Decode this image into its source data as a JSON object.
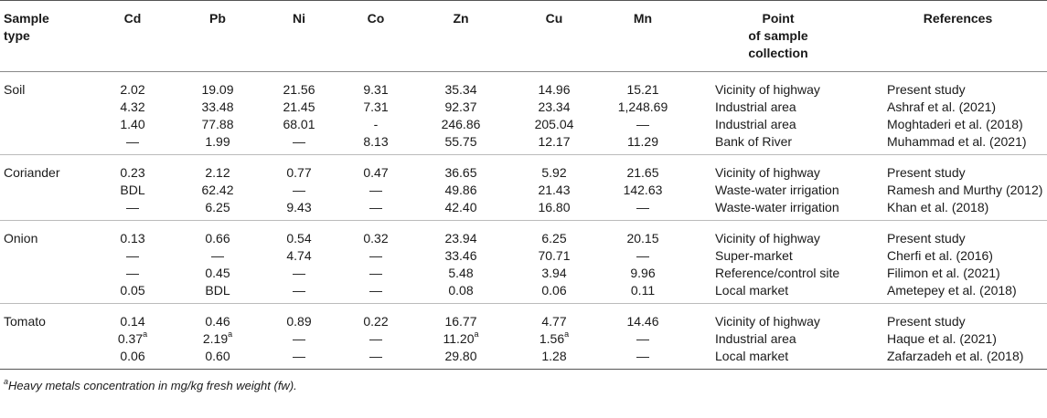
{
  "headers": {
    "sample_type": [
      "Sample",
      "type"
    ],
    "cd": "Cd",
    "pb": "Pb",
    "ni": "Ni",
    "co": "Co",
    "zn": "Zn",
    "cu": "Cu",
    "mn": "Mn",
    "point": [
      "Point",
      "of sample",
      "collection"
    ],
    "references": "References"
  },
  "groups": [
    {
      "sample": "Soil",
      "rows": [
        {
          "cd": "2.02",
          "pb": "19.09",
          "ni": "21.56",
          "co": "9.31",
          "zn": "35.34",
          "cu": "14.96",
          "mn": "15.21",
          "point": "Vicinity of highway",
          "ref": "Present study"
        },
        {
          "cd": "4.32",
          "pb": "33.48",
          "ni": "21.45",
          "co": "7.31",
          "zn": "92.37",
          "cu": "23.34",
          "mn": "1,248.69",
          "point": "Industrial area",
          "ref": "Ashraf et al. (2021)"
        },
        {
          "cd": "1.40",
          "pb": "77.88",
          "ni": "68.01",
          "co": "-",
          "zn": "246.86",
          "cu": "205.04",
          "mn": "—",
          "point": "Industrial area",
          "ref": "Moghtaderi et al. (2018)"
        },
        {
          "cd": "—",
          "pb": "1.99",
          "ni": "—",
          "co": "8.13",
          "zn": "55.75",
          "cu": "12.17",
          "mn": "11.29",
          "point": "Bank of River",
          "ref": "Muhammad et al. (2021)"
        }
      ]
    },
    {
      "sample": "Coriander",
      "rows": [
        {
          "cd": "0.23",
          "pb": "2.12",
          "ni": "0.77",
          "co": "0.47",
          "zn": "36.65",
          "cu": "5.92",
          "mn": "21.65",
          "point": "Vicinity of highway",
          "ref": "Present study"
        },
        {
          "cd": "BDL",
          "pb": "62.42",
          "ni": "—",
          "co": "—",
          "zn": "49.86",
          "cu": "21.43",
          "mn": "142.63",
          "point": "Waste-water irrigation",
          "ref": "Ramesh and Murthy (2012)"
        },
        {
          "cd": "—",
          "pb": "6.25",
          "ni": "9.43",
          "co": "—",
          "zn": "42.40",
          "cu": "16.80",
          "mn": "—",
          "point": "Waste-water irrigation",
          "ref": "Khan et al. (2018)"
        }
      ]
    },
    {
      "sample": "Onion",
      "rows": [
        {
          "cd": "0.13",
          "pb": "0.66",
          "ni": "0.54",
          "co": "0.32",
          "zn": "23.94",
          "cu": "6.25",
          "mn": "20.15",
          "point": "Vicinity of highway",
          "ref": "Present study"
        },
        {
          "cd": "—",
          "pb": "—",
          "ni": "4.74",
          "co": "—",
          "zn": "33.46",
          "cu": "70.71",
          "mn": "—",
          "point": "Super-market",
          "ref": "Cherfi et al. (2016)"
        },
        {
          "cd": "—",
          "pb": "0.45",
          "ni": "—",
          "co": "—",
          "zn": "5.48",
          "cu": "3.94",
          "mn": "9.96",
          "point": "Reference/control site",
          "ref": "Filimon et al. (2021)"
        },
        {
          "cd": "0.05",
          "pb": "BDL",
          "ni": "—",
          "co": "—",
          "zn": "0.08",
          "cu": "0.06",
          "mn": "0.11",
          "point": "Local market",
          "ref": "Ametepey et al. (2018)"
        }
      ]
    },
    {
      "sample": "Tomato",
      "rows": [
        {
          "cd": "0.14",
          "pb": "0.46",
          "ni": "0.89",
          "co": "0.22",
          "zn": "16.77",
          "cu": "4.77",
          "mn": "14.46",
          "point": "Vicinity of highway",
          "ref": "Present study"
        },
        {
          "cd": "0.37",
          "cd_sup": "a",
          "pb": "2.19",
          "pb_sup": "a",
          "ni": "—",
          "co": "—",
          "zn": "11.20",
          "zn_sup": "a",
          "cu": "1.56",
          "cu_sup": "a",
          "mn": "—",
          "point": "Industrial area",
          "ref": "Haque et al. (2021)"
        },
        {
          "cd": "0.06",
          "pb": "0.60",
          "ni": "—",
          "co": "—",
          "zn": "29.80",
          "cu": "1.28",
          "mn": "—",
          "point": "Local market",
          "ref": "Zafarzadeh et al. (2018)"
        }
      ]
    }
  ],
  "footnote": {
    "marker": "a",
    "text": "Heavy metals concentration in mg/kg fresh weight (fw)."
  }
}
